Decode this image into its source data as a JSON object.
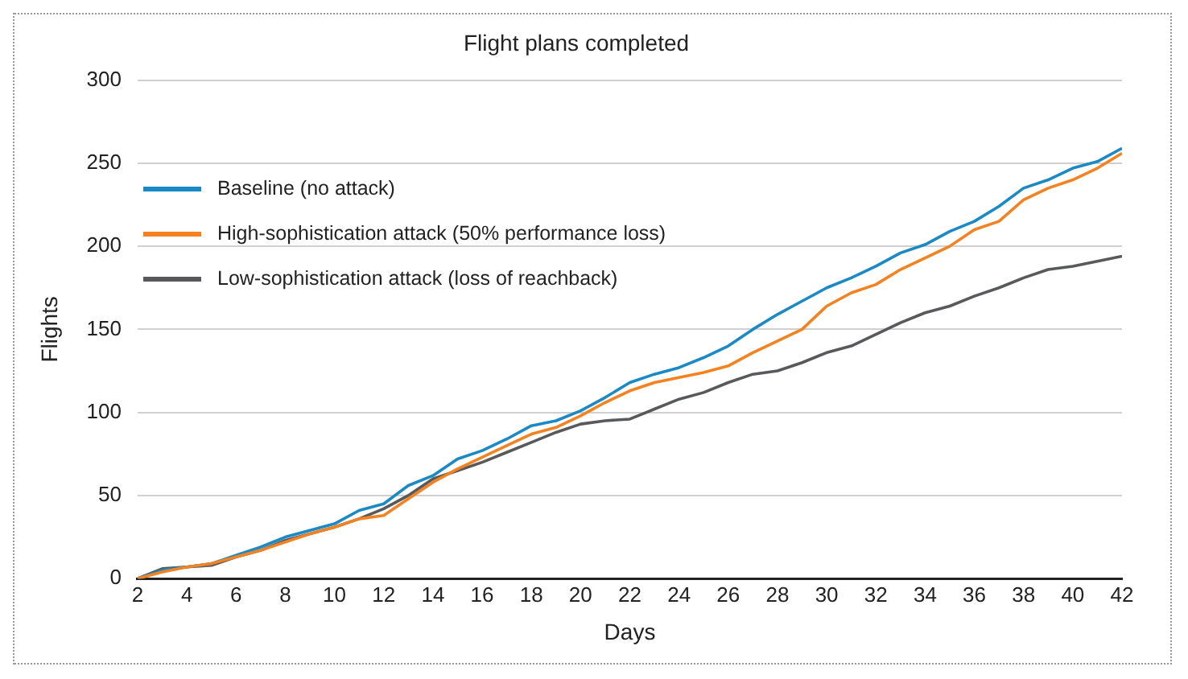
{
  "chart_data": {
    "type": "line",
    "title": "Flight plans completed",
    "xlabel": "Days",
    "ylabel": "Flights",
    "x": [
      2,
      3,
      4,
      5,
      6,
      7,
      8,
      9,
      10,
      11,
      12,
      13,
      14,
      15,
      16,
      17,
      18,
      19,
      20,
      21,
      22,
      23,
      24,
      25,
      26,
      27,
      28,
      29,
      30,
      31,
      32,
      33,
      34,
      35,
      36,
      37,
      38,
      39,
      40,
      41,
      42
    ],
    "series": [
      {
        "name": "Baseline (no attack)",
        "color": "#1a8ac6",
        "values": [
          0,
          5,
          7,
          9,
          14,
          19,
          25,
          29,
          33,
          41,
          45,
          56,
          62,
          72,
          77,
          84,
          92,
          95,
          101,
          109,
          118,
          123,
          127,
          133,
          140,
          150,
          159,
          167,
          175,
          181,
          188,
          196,
          201,
          209,
          215,
          224,
          235,
          240,
          247,
          251,
          259
        ]
      },
      {
        "name": "High-sophistication attack (50% performance loss)",
        "color": "#f5821f",
        "values": [
          0,
          4,
          7,
          9,
          13,
          17,
          22,
          27,
          31,
          36,
          38,
          48,
          58,
          66,
          73,
          80,
          87,
          91,
          98,
          106,
          113,
          118,
          121,
          124,
          128,
          136,
          143,
          150,
          164,
          172,
          177,
          186,
          193,
          200,
          210,
          215,
          228,
          235,
          240,
          247,
          256
        ]
      },
      {
        "name": "Low-sophistication attack (loss of reachback)",
        "color": "#58595b",
        "values": [
          0,
          6,
          7,
          8,
          13,
          17,
          23,
          27,
          31,
          36,
          42,
          50,
          60,
          65,
          70,
          76,
          82,
          88,
          93,
          95,
          96,
          102,
          108,
          112,
          118,
          123,
          125,
          130,
          136,
          140,
          147,
          154,
          160,
          164,
          170,
          175,
          181,
          186,
          188,
          191,
          194
        ]
      }
    ],
    "xlim": [
      2,
      42
    ],
    "xticks": [
      2,
      4,
      6,
      8,
      10,
      12,
      14,
      16,
      18,
      20,
      22,
      24,
      26,
      28,
      30,
      32,
      34,
      36,
      38,
      40,
      42
    ],
    "ylim": [
      0,
      300
    ],
    "yticks": [
      0,
      50,
      100,
      150,
      200,
      250,
      300
    ],
    "grid": "y",
    "legend": "top left",
    "marker": "none",
    "line_style": "solid"
  }
}
